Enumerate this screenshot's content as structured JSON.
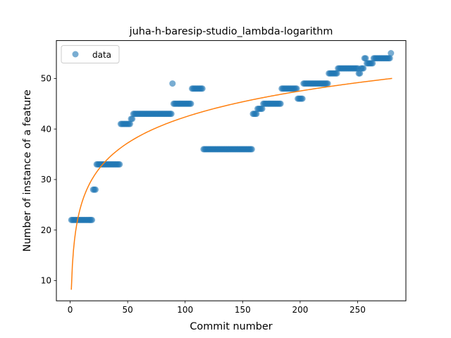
{
  "chart_data": {
    "type": "scatter",
    "title": "juha-h-baresip-studio_lambda-logarithm",
    "xlabel": "Commit number",
    "ylabel": "Number of instance of a feature",
    "xlim": [
      -12,
      292
    ],
    "ylim": [
      6,
      57.5
    ],
    "xticks": [
      0,
      50,
      100,
      150,
      200,
      250
    ],
    "yticks": [
      10,
      20,
      30,
      40,
      50
    ],
    "legend": {
      "label": "data",
      "position": "top-left"
    },
    "colors": {
      "points": "#1f77b4",
      "fit": "#ff7f0e"
    },
    "series": [
      {
        "name": "data",
        "style": "points",
        "segments": [
          {
            "x_start": 1,
            "x_end": 19,
            "y": 22
          },
          {
            "x_start": 20,
            "x_end": 22,
            "y": 28
          },
          {
            "x_start": 23,
            "x_end": 43,
            "y": 33
          },
          {
            "x_start": 44,
            "x_end": 52,
            "y": 41
          },
          {
            "x_start": 53,
            "x_end": 54,
            "y": 42
          },
          {
            "x_start": 55,
            "x_end": 88,
            "y": 43
          },
          {
            "x_start": 89,
            "x_end": 89,
            "y": 49
          },
          {
            "x_start": 90,
            "x_end": 105,
            "y": 45
          },
          {
            "x_start": 106,
            "x_end": 115,
            "y": 48
          },
          {
            "x_start": 116,
            "x_end": 158,
            "y": 36
          },
          {
            "x_start": 159,
            "x_end": 162,
            "y": 43
          },
          {
            "x_start": 163,
            "x_end": 167,
            "y": 44
          },
          {
            "x_start": 168,
            "x_end": 183,
            "y": 45
          },
          {
            "x_start": 184,
            "x_end": 197,
            "y": 48
          },
          {
            "x_start": 198,
            "x_end": 202,
            "y": 46
          },
          {
            "x_start": 203,
            "x_end": 224,
            "y": 49
          },
          {
            "x_start": 225,
            "x_end": 232,
            "y": 51
          },
          {
            "x_start": 233,
            "x_end": 250,
            "y": 52
          },
          {
            "x_start": 251,
            "x_end": 252,
            "y": 51
          },
          {
            "x_start": 253,
            "x_end": 255,
            "y": 52
          },
          {
            "x_start": 256,
            "x_end": 257,
            "y": 54
          },
          {
            "x_start": 258,
            "x_end": 263,
            "y": 53
          },
          {
            "x_start": 264,
            "x_end": 278,
            "y": 54
          },
          {
            "x_start": 279,
            "x_end": 279,
            "y": 55
          }
        ]
      },
      {
        "name": "",
        "style": "line",
        "fit": {
          "model": "logarithmic",
          "a": 8.2,
          "b": 7.42,
          "x_start": 1,
          "x_end": 280
        }
      }
    ]
  }
}
